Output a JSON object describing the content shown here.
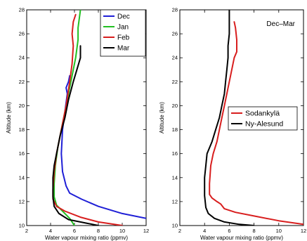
{
  "chart_data": [
    {
      "type": "line",
      "panel": "left",
      "title": "",
      "xlabel": "Water vapour mixing ratio (ppmv)",
      "ylabel": "Altitude (km)",
      "xlim": [
        2,
        12
      ],
      "ylim": [
        10,
        28
      ],
      "xticks": [
        "2",
        "4",
        "6",
        "8",
        "10",
        "12"
      ],
      "yticks": [
        "10",
        "12",
        "14",
        "16",
        "18",
        "20",
        "22",
        "24",
        "26",
        "28"
      ],
      "legend_position": "top-right",
      "series": [
        {
          "name": "Dec",
          "color": "#1f1fd6",
          "points": [
            [
              12.0,
              10.6
            ],
            [
              10.0,
              11.0
            ],
            [
              8.0,
              11.6
            ],
            [
              6.6,
              12.2
            ],
            [
              5.6,
              12.7
            ],
            [
              5.3,
              13.3
            ],
            [
              5.0,
              14.5
            ],
            [
              4.9,
              16.0
            ],
            [
              5.0,
              18.0
            ],
            [
              5.2,
              19.5
            ],
            [
              5.4,
              21.0
            ],
            [
              5.3,
              21.5
            ],
            [
              5.5,
              22.0
            ],
            [
              5.6,
              22.5
            ]
          ]
        },
        {
          "name": "Jan",
          "color": "#22c022",
          "points": [
            [
              6.0,
              10.0
            ],
            [
              5.6,
              10.6
            ],
            [
              5.0,
              11.2
            ],
            [
              4.5,
              11.7
            ],
            [
              4.3,
              12.4
            ],
            [
              4.3,
              13.5
            ],
            [
              4.4,
              15.0
            ],
            [
              4.6,
              16.5
            ],
            [
              4.9,
              18.0
            ],
            [
              5.2,
              19.5
            ],
            [
              5.5,
              21.0
            ],
            [
              5.8,
              22.5
            ],
            [
              6.1,
              24.0
            ],
            [
              6.3,
              25.5
            ],
            [
              6.3,
              26.5
            ],
            [
              6.5,
              28.0
            ]
          ]
        },
        {
          "name": "Feb",
          "color": "#d81e1e",
          "points": [
            [
              10.0,
              10.0
            ],
            [
              8.0,
              10.3
            ],
            [
              6.5,
              10.7
            ],
            [
              5.2,
              11.2
            ],
            [
              4.5,
              11.6
            ],
            [
              4.2,
              12.2
            ],
            [
              4.2,
              13.0
            ],
            [
              4.3,
              14.5
            ],
            [
              4.5,
              16.0
            ],
            [
              4.9,
              18.0
            ],
            [
              5.3,
              20.0
            ],
            [
              5.6,
              22.0
            ],
            [
              5.8,
              23.5
            ],
            [
              5.9,
              25.0
            ],
            [
              5.8,
              26.0
            ],
            [
              5.9,
              27.0
            ],
            [
              6.1,
              27.6
            ]
          ]
        },
        {
          "name": "Mar",
          "color": "#000000",
          "points": [
            [
              8.0,
              10.0
            ],
            [
              7.0,
              10.2
            ],
            [
              5.5,
              10.5
            ],
            [
              4.7,
              11.0
            ],
            [
              4.3,
              11.6
            ],
            [
              4.2,
              12.4
            ],
            [
              4.2,
              14.0
            ],
            [
              4.3,
              15.0
            ],
            [
              4.5,
              16.0
            ],
            [
              4.8,
              17.5
            ],
            [
              5.2,
              19.0
            ],
            [
              5.5,
              20.5
            ],
            [
              5.9,
              22.0
            ],
            [
              6.2,
              23.0
            ],
            [
              6.5,
              24.0
            ],
            [
              6.5,
              25.0
            ]
          ]
        }
      ]
    },
    {
      "type": "line",
      "panel": "right",
      "title": "",
      "annotation": "Dec–Mar",
      "xlabel": "Water vapour mixing ratio (ppmv)",
      "ylabel": "Altitude (km)",
      "xlim": [
        2,
        12
      ],
      "ylim": [
        10,
        28
      ],
      "xticks": [
        "2",
        "4",
        "6",
        "8",
        "10",
        "12"
      ],
      "yticks": [
        "10",
        "12",
        "14",
        "16",
        "18",
        "20",
        "22",
        "24",
        "26",
        "28"
      ],
      "legend_position": "middle-right",
      "series": [
        {
          "name": "Sodankylä",
          "color": "#d81e1e",
          "points": [
            [
              12.0,
              10.1
            ],
            [
              10.0,
              10.4
            ],
            [
              8.0,
              10.8
            ],
            [
              6.5,
              11.1
            ],
            [
              5.6,
              11.4
            ],
            [
              5.3,
              11.8
            ],
            [
              5.0,
              12.0
            ],
            [
              4.6,
              12.3
            ],
            [
              4.4,
              12.6
            ],
            [
              4.4,
              13.5
            ],
            [
              4.5,
              15.0
            ],
            [
              4.7,
              16.0
            ],
            [
              5.0,
              17.0
            ],
            [
              5.2,
              18.0
            ],
            [
              5.4,
              19.0
            ],
            [
              5.6,
              20.0
            ],
            [
              5.8,
              21.0
            ],
            [
              6.0,
              22.0
            ],
            [
              6.2,
              23.0
            ],
            [
              6.4,
              24.0
            ],
            [
              6.6,
              24.5
            ],
            [
              6.6,
              25.5
            ],
            [
              6.5,
              26.5
            ],
            [
              6.4,
              27.0
            ]
          ]
        },
        {
          "name": "Ny-Alesund",
          "color": "#000000",
          "points": [
            [
              8.0,
              10.0
            ],
            [
              6.8,
              10.1
            ],
            [
              5.6,
              10.3
            ],
            [
              4.8,
              10.6
            ],
            [
              4.3,
              11.0
            ],
            [
              4.1,
              11.5
            ],
            [
              4.0,
              12.5
            ],
            [
              4.0,
              14.0
            ],
            [
              4.1,
              15.0
            ],
            [
              4.2,
              16.0
            ],
            [
              4.6,
              17.0
            ],
            [
              4.9,
              18.0
            ],
            [
              5.2,
              19.0
            ],
            [
              5.4,
              20.0
            ],
            [
              5.6,
              21.0
            ],
            [
              5.7,
              22.0
            ],
            [
              5.8,
              23.0
            ],
            [
              5.9,
              24.0
            ],
            [
              5.9,
              25.0
            ],
            [
              6.0,
              26.0
            ],
            [
              6.0,
              27.0
            ],
            [
              6.0,
              28.0
            ]
          ]
        }
      ]
    }
  ]
}
